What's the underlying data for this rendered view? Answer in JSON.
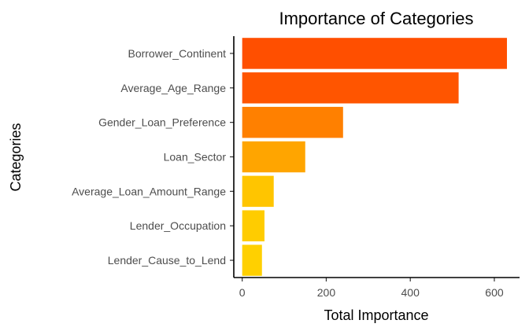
{
  "chart_data": {
    "type": "bar",
    "orientation": "horizontal",
    "title": "Importance of Categories",
    "xlabel": "Total Importance",
    "ylabel": "Categories",
    "categories": [
      "Borrower_Continent",
      "Average_Age_Range",
      "Gender_Loan_Preference",
      "Loan_Sector",
      "Average_Loan_Amount_Range",
      "Lender_Occupation",
      "Lender_Cause_to_Lend"
    ],
    "values": [
      630,
      515,
      240,
      150,
      75,
      53,
      47
    ],
    "colors": [
      "#ff4f00",
      "#ff5500",
      "#ff8000",
      "#ffa500",
      "#ffc500",
      "#ffcc00",
      "#ffd000"
    ],
    "xlim": [
      -20,
      660
    ],
    "xticks": [
      0,
      200,
      400,
      600
    ],
    "grid": false,
    "legend": false
  }
}
